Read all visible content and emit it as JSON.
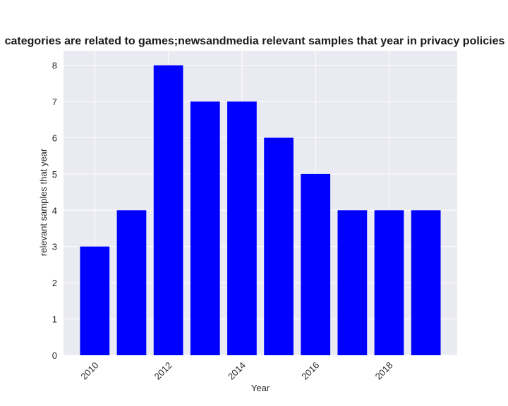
{
  "chart_data": {
    "type": "bar",
    "title": "categories are related to games;newsandmedia relevant samples that year in privacy policies",
    "xlabel": "Year",
    "ylabel": "relevant samples that year",
    "x": [
      2010,
      2011,
      2012,
      2013,
      2014,
      2015,
      2016,
      2017,
      2018,
      2019
    ],
    "values": [
      3,
      4,
      8,
      7,
      7,
      6,
      5,
      4,
      4,
      4
    ],
    "xticks": [
      2010,
      2012,
      2014,
      2016,
      2018
    ],
    "yticks": [
      0,
      1,
      2,
      3,
      4,
      5,
      6,
      7,
      8
    ],
    "xlim": [
      2009.15,
      2019.85
    ],
    "ylim": [
      0,
      8.4
    ],
    "bar_color": "#0000ff",
    "background_color": "#eaeaf2",
    "grid": true,
    "grid_color": "#ffffff"
  }
}
